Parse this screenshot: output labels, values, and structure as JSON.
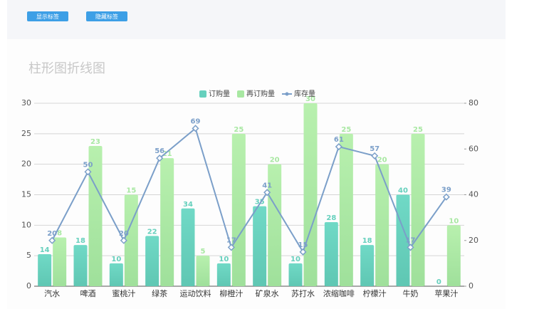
{
  "buttons": [
    "显示标签",
    "隐藏标签"
  ],
  "chart_data": {
    "type": "bar",
    "title": "柱形图折线图",
    "categories": [
      "汽水",
      "啤酒",
      "蜜桃汁",
      "绿茶",
      "运动饮料",
      "柳橙汁",
      "矿泉水",
      "苏打水",
      "浓缩咖啡",
      "柠檬汁",
      "牛奶",
      "苹果汁"
    ],
    "series": [
      {
        "name": "订购量",
        "type": "bar",
        "axis": "y2",
        "color": "#66d0bd",
        "values": [
          14,
          18,
          10,
          22,
          34,
          10,
          35,
          10,
          28,
          18,
          40,
          0
        ]
      },
      {
        "name": "再订购量",
        "type": "bar",
        "color": "#a8e8a2",
        "values": [
          8,
          23,
          15,
          21,
          5,
          25,
          20,
          30,
          25,
          20,
          25,
          10
        ]
      },
      {
        "name": "库存量",
        "type": "line",
        "axis": "y2",
        "color": "#7b9fc9",
        "values": [
          20,
          50,
          20,
          56,
          69,
          17,
          41,
          15,
          61,
          57,
          17,
          39
        ]
      }
    ],
    "ylim": [
      0,
      30
    ],
    "yticks": [
      0,
      5,
      10,
      15,
      20,
      25,
      30
    ],
    "y2lim": [
      0,
      80
    ],
    "y2ticks": [
      0,
      20,
      40,
      60,
      80
    ],
    "grid": true,
    "legend": "top"
  }
}
